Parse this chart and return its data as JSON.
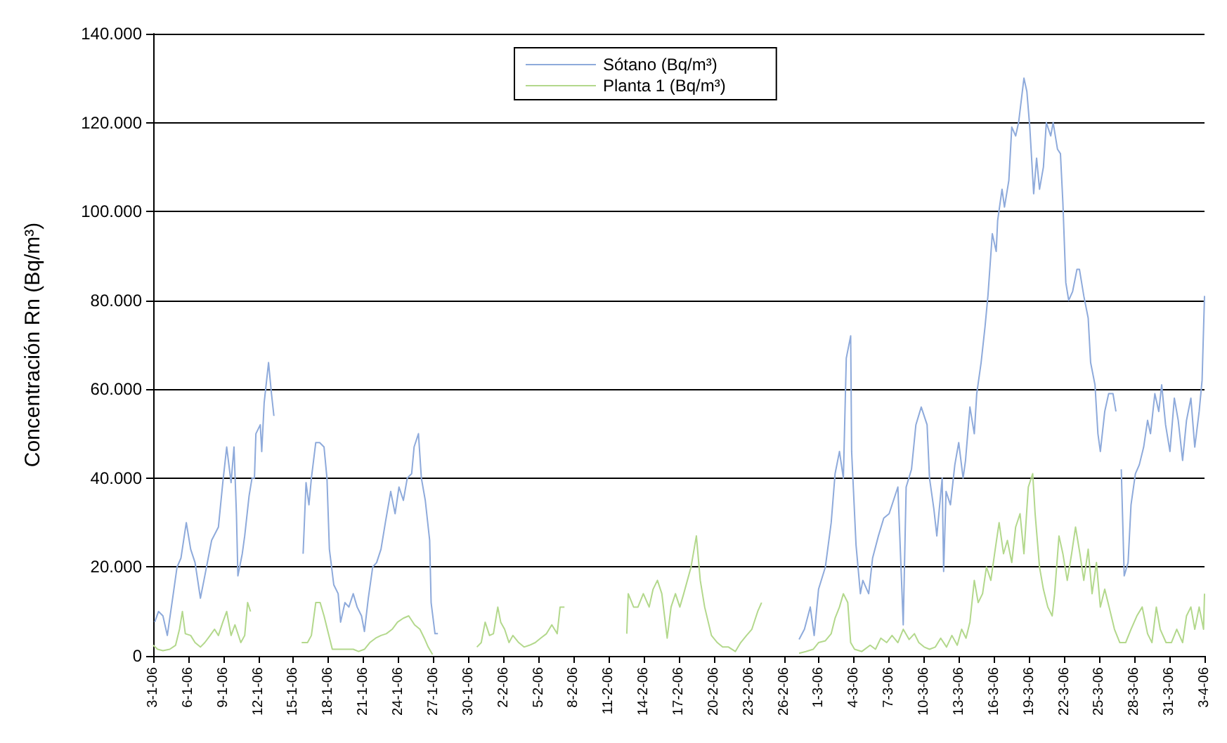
{
  "chart_data": {
    "type": "line",
    "ylabel": "Concentración Rn (Bq/m³)",
    "legend": "top",
    "grid": "y",
    "marker": "none",
    "line_style": "solid",
    "xlim": [
      "--01-03",
      "--04-03"
    ],
    "xticks": [
      {
        "value": "--01-03",
        "label": "3-1-06"
      },
      {
        "value": "--01-06",
        "label": "6-1-06"
      },
      {
        "value": "--01-09",
        "label": "9-1-06"
      },
      {
        "value": "--01-12",
        "label": "12-1-06"
      },
      {
        "value": "--01-15",
        "label": "15-1-06"
      },
      {
        "value": "--01-18",
        "label": "18-1-06"
      },
      {
        "value": "--01-21",
        "label": "21-1-06"
      },
      {
        "value": "--01-24",
        "label": "24-1-06"
      },
      {
        "value": "--01-27",
        "label": "27-1-06"
      },
      {
        "value": "--01-30",
        "label": "30-1-06"
      },
      {
        "value": "--02-02",
        "label": "2-2-06"
      },
      {
        "value": "--02-05",
        "label": "5-2-06"
      },
      {
        "value": "--02-08",
        "label": "8-2-06"
      },
      {
        "value": "--02-11",
        "label": "11-2-06"
      },
      {
        "value": "--02-14",
        "label": "14-2-06"
      },
      {
        "value": "--02-17",
        "label": "17-2-06"
      },
      {
        "value": "--02-20",
        "label": "20-2-06"
      },
      {
        "value": "--02-23",
        "label": "23-2-06"
      },
      {
        "value": "--02-26",
        "label": "26-2-06"
      },
      {
        "value": "--03-01",
        "label": "1-3-06"
      },
      {
        "value": "--03-04",
        "label": "4-3-06"
      },
      {
        "value": "--03-07",
        "label": "7-3-06"
      },
      {
        "value": "--03-10",
        "label": "10-3-06"
      },
      {
        "value": "--03-13",
        "label": "13-3-06"
      },
      {
        "value": "--03-16",
        "label": "16-3-06"
      },
      {
        "value": "--03-19",
        "label": "19-3-06"
      },
      {
        "value": "--03-22",
        "label": "22-3-06"
      },
      {
        "value": "--03-25",
        "label": "25-3-06"
      },
      {
        "value": "--03-28",
        "label": "28-3-06"
      },
      {
        "value": "--03-31",
        "label": "31-3-06"
      },
      {
        "value": "--04-03",
        "label": "3-4-06"
      }
    ],
    "ylim": [
      0,
      140000
    ],
    "yticks": [
      {
        "value": 0,
        "label": "0"
      },
      {
        "value": 20000,
        "label": "20.000"
      },
      {
        "value": 40000,
        "label": "40.000"
      },
      {
        "value": 60000,
        "label": "60.000"
      },
      {
        "value": 80000,
        "label": "80.000"
      },
      {
        "value": 100000,
        "label": "100.000"
      },
      {
        "value": 120000,
        "label": "120.000"
      },
      {
        "value": 140000,
        "label": "140.000"
      }
    ],
    "series": [
      {
        "name": "Sótano (Bq/m³)",
        "color": "#8eaadb",
        "x": [
          "--01-03T03:00",
          "--01-03T11:00",
          "--01-03T20:00",
          "--01-04T05:00",
          "--01-04T16:00",
          "--01-05T01:00",
          "--01-05T09:00",
          "--01-05T20:00",
          "--01-06T05:00",
          "--01-06T14:00",
          "--01-07T01:00",
          "--01-07T10:00",
          "--01-08T00:00",
          "--01-08T14:00",
          "--01-08T23:00",
          "--01-09T07:00",
          "--01-09T16:00",
          "--01-09T22:00",
          "--01-10T03:00",
          "--01-10T06:00",
          "--01-10T15:00",
          "--01-10T20:00",
          "--01-11T05:00",
          "--01-11T11:00",
          "--01-11T16:00",
          "--01-11T19:00",
          "--01-12T04:00",
          "--01-12T07:00",
          "--01-12T12:00",
          "--01-12T21:00",
          "--01-13T03:00",
          "--01-13T08:00",
          "--01-14T00:00",
          "--01-15T20:00",
          "--01-16T02:00",
          "--01-16T08:00",
          "--01-16T13:00",
          "--01-16T22:00",
          "--01-17T06:00",
          "--01-17T15:00",
          "--01-17T21:00",
          "--01-18T02:00",
          "--01-18T11:00",
          "--01-18T20:00",
          "--01-19T01:00",
          "--01-19T10:00",
          "--01-19T18:00",
          "--01-20T03:00",
          "--01-20T11:00",
          "--01-20T20:00",
          "--01-21T02:00",
          "--01-21T10:00",
          "--01-21T19:00",
          "--01-22T03:00",
          "--01-22T12:00",
          "--01-22T21:00",
          "--01-23T08:00",
          "--01-23T17:00",
          "--01-24T01:00",
          "--01-24T10:00",
          "--01-24T18:00",
          "--01-25T03:00",
          "--01-25T08:00",
          "--01-25T17:00",
          "--01-25T23:00",
          "--01-26T07:00",
          "--01-26T16:00",
          "--01-26T19:00",
          "--01-27T03:00",
          "--01-27T09:00",
          "--01-28T00:00",
          "--02-27T07:00",
          "--02-27T18:00",
          "--02-28T06:00",
          "--02-28T14:00",
          "--02-28T23:00",
          "--03-01T13:00",
          "--03-02T01:00",
          "--03-02T09:00",
          "--03-02T18:00",
          "--03-03T02:00",
          "--03-03T08:00",
          "--03-03T17:00",
          "--03-03T19:00",
          "--03-04T04:00",
          "--03-04T13:00",
          "--03-04T18:00",
          "--03-05T06:00",
          "--03-05T14:00",
          "--03-06T02:00",
          "--03-06T13:00",
          "--03-07T00:00",
          "--03-07T09:00",
          "--03-07T18:00",
          "--03-07T23:00",
          "--03-08T05:00",
          "--03-08T11:00",
          "--03-08T22:00",
          "--03-09T07:00",
          "--03-09T18:00",
          "--03-10T06:00",
          "--03-10T11:00",
          "--03-10T20:00",
          "--03-11T02:00",
          "--03-11T13:00",
          "--03-11T16:00",
          "--03-11T21:00",
          "--03-12T06:00",
          "--03-12T15:00",
          "--03-12T23:00",
          "--03-13T08:00",
          "--03-13T13:00",
          "--03-13T22:00",
          "--03-14T07:00",
          "--03-14T12:00",
          "--03-14T21:00",
          "--03-15T05:00",
          "--03-15T11:00",
          "--03-15T20:00",
          "--03-16T04:00",
          "--03-16T07:00",
          "--03-16T16:00",
          "--03-16T21:00",
          "--03-17T06:00",
          "--03-17T12:00",
          "--03-17T20:00",
          "--03-18T02:00",
          "--03-18T13:00",
          "--03-18T19:00",
          "--03-19T01:00",
          "--03-19T09:00",
          "--03-19T15:00",
          "--03-19T21:00",
          "--03-20T05:00",
          "--03-20T11:00",
          "--03-20T20:00",
          "--03-21T01:00",
          "--03-21T10:00",
          "--03-21T16:00",
          "--03-21T21:00",
          "--03-22T03:00",
          "--03-22T09:00",
          "--03-22T17:00",
          "--03-23T02:00",
          "--03-23T07:00",
          "--03-23T16:00",
          "--03-24T01:00",
          "--03-24T06:00",
          "--03-24T15:00",
          "--03-24T21:00",
          "--03-25T02:00",
          "--03-25T11:00",
          "--03-25T19:00",
          "--03-26T04:00",
          "--03-26T10:00",
          "--03-26T16:00",
          "--03-26T21:00",
          "--03-27T03:00",
          "--03-27T11:00",
          "--03-27T17:00",
          "--03-28T02:00",
          "--03-28T10:00",
          "--03-28T19:00",
          "--03-29T03:00",
          "--03-29T09:00",
          "--03-29T18:00",
          "--03-30T02:00",
          "--03-30T08:00",
          "--03-30T16:00",
          "--03-31T01:00",
          "--03-31T10:00",
          "--03-31T18:00",
          "--04-01T03:00",
          "--04-01T11:00",
          "--04-01T20:00",
          "--04-02T04:00",
          "--04-02T13:00",
          "--04-02T19:00",
          "--04-03T00:00"
        ],
        "values": [
          7600,
          10000,
          9000,
          4600,
          13000,
          20000,
          22000,
          30000,
          24000,
          21000,
          13000,
          18000,
          26000,
          29000,
          39000,
          47000,
          39000,
          47000,
          32000,
          18000,
          23000,
          27000,
          36000,
          40000,
          40000,
          50000,
          52000,
          46000,
          57000,
          66000,
          59000,
          54000,
          null,
          23000,
          39000,
          34000,
          40000,
          48000,
          48000,
          47000,
          40000,
          24000,
          16000,
          14000,
          7600,
          12000,
          11000,
          14000,
          11000,
          9000,
          5500,
          13000,
          20000,
          21000,
          24000,
          30000,
          37000,
          32000,
          38000,
          35000,
          40000,
          41000,
          47000,
          50000,
          40000,
          35000,
          26000,
          12000,
          5000,
          5000,
          null,
          3700,
          6000,
          11000,
          4600,
          15000,
          20000,
          30000,
          41000,
          46000,
          40000,
          67000,
          72000,
          46000,
          25000,
          14000,
          17000,
          14000,
          22000,
          27000,
          31000,
          32000,
          35000,
          38000,
          24000,
          7000,
          38000,
          42000,
          52000,
          56000,
          52000,
          40000,
          33000,
          27000,
          40000,
          19000,
          37000,
          34000,
          43000,
          48000,
          40000,
          44000,
          56000,
          50000,
          59000,
          66000,
          74000,
          81000,
          95000,
          91000,
          98000,
          105000,
          101000,
          107000,
          119000,
          117000,
          120000,
          130000,
          127000,
          119000,
          104000,
          112000,
          105000,
          110000,
          120000,
          117000,
          120000,
          114000,
          113000,
          102000,
          84000,
          80000,
          82000,
          87000,
          87000,
          81000,
          76000,
          66000,
          61000,
          50000,
          46000,
          55000,
          59000,
          59000,
          55000,
          null,
          42000,
          18000,
          21000,
          34000,
          41000,
          43000,
          47000,
          53000,
          50000,
          59000,
          55000,
          61000,
          52000,
          46000,
          58000,
          53000,
          44000,
          53000,
          58000,
          47000,
          55000,
          62000,
          81000
        ]
      },
      {
        "name": "Planta 1 (Bq/m³)",
        "color": "#b3d88c",
        "x": [
          "--01-03T00:00",
          "--01-03T09:00",
          "--01-03T20:00",
          "--01-04T10:00",
          "--01-04T22:00",
          "--01-05T06:00",
          "--01-05T12:00",
          "--01-05T18:00",
          "--01-06T05:00",
          "--01-06T14:00",
          "--01-07T01:00",
          "--01-07T10:00",
          "--01-07T21:00",
          "--01-08T06:00",
          "--01-08T14:00",
          "--01-08T23:00",
          "--01-09T07:00",
          "--01-09T16:00",
          "--01-10T00:00",
          "--01-10T12:00",
          "--01-10T20:00",
          "--01-11T02:00",
          "--01-11T08:00",
          "--01-12T00:00",
          "--01-15T17:00",
          "--01-16T05:00",
          "--01-16T13:00",
          "--01-16T22:00",
          "--01-17T07:00",
          "--01-17T15:00",
          "--01-18T00:00",
          "--01-18T08:00",
          "--01-19T01:00",
          "--01-19T16:00",
          "--01-20T03:00",
          "--01-20T14:00",
          "--01-21T02:00",
          "--01-21T13:00",
          "--01-22T01:00",
          "--01-22T12:00",
          "--01-22T23:00",
          "--01-23T11:00",
          "--01-23T22:00",
          "--01-24T10:00",
          "--01-24T21:00",
          "--01-25T09:00",
          "--01-25T20:00",
          "--01-26T05:00",
          "--01-26T13:00",
          "--01-26T22:00",
          "--01-28T00:00",
          "--01-30T17:00",
          "--01-31T02:00",
          "--01-31T10:00",
          "--01-31T19:00",
          "--02-01T03:00",
          "--02-01T12:00",
          "--02-01T18:00",
          "--02-02T02:00",
          "--02-02T11:00",
          "--02-02T19:00",
          "--02-03T07:00",
          "--02-03T18:00",
          "--02-04T05:00",
          "--02-04T17:00",
          "--02-05T04:00",
          "--02-05T16:00",
          "--02-06T03:00",
          "--02-06T14:00",
          "--02-06T20:00",
          "--02-07T05:00",
          "--02-09T00:00",
          "--02-12T13:00",
          "--02-12T16:00",
          "--02-13T03:00",
          "--02-13T12:00",
          "--02-13T23:00",
          "--02-14T11:00",
          "--02-14T19:00",
          "--02-15T04:00",
          "--02-15T13:00",
          "--02-16T00:00",
          "--02-16T08:00",
          "--02-16T17:00",
          "--02-17T02:00",
          "--02-17T10:00",
          "--02-18T01:00",
          "--02-18T12:00",
          "--02-18T20:00",
          "--02-19T05:00",
          "--02-19T19:00",
          "--02-20T07:00",
          "--02-20T18:00",
          "--02-21T06:00",
          "--02-21T20:00",
          "--02-22T07:00",
          "--02-22T19:00",
          "--02-23T06:00",
          "--02-23T18:00",
          "--02-24T02:00",
          "--02-25T12:00",
          "--02-27T07:00",
          "--02-27T21:00",
          "--02-28T12:00",
          "--02-28T23:00",
          "--03-01T13:00",
          "--03-02T01:00",
          "--03-02T09:00",
          "--03-02T18:00",
          "--03-03T02:00",
          "--03-03T11:00",
          "--03-03T17:00",
          "--03-04T01:00",
          "--03-04T16:00",
          "--03-05T09:00",
          "--03-05T20:00",
          "--03-06T07:00",
          "--03-06T19:00",
          "--03-07T06:00",
          "--03-07T18:00",
          "--03-08T05:00",
          "--03-08T17:00",
          "--03-09T04:00",
          "--03-09T13:00",
          "--03-10T00:00",
          "--03-10T11:00",
          "--03-10T23:00",
          "--03-11T10:00",
          "--03-11T22:00",
          "--03-12T09:00",
          "--03-12T20:00",
          "--03-13T05:00",
          "--03-13T14:00",
          "--03-13T22:00",
          "--03-14T07:00",
          "--03-14T15:00",
          "--03-15T00:00",
          "--03-15T08:00",
          "--03-15T17:00",
          "--03-16T02:00",
          "--03-16T10:00",
          "--03-16T19:00",
          "--03-17T03:00",
          "--03-17T12:00",
          "--03-17T20:00",
          "--03-18T05:00",
          "--03-18T13:00",
          "--03-18T22:00",
          "--03-19T07:00",
          "--03-19T12:00",
          "--03-19T21:00",
          "--03-20T05:00",
          "--03-20T14:00",
          "--03-20T23:00",
          "--03-21T04:00",
          "--03-21T13:00",
          "--03-21T21:00",
          "--03-22T06:00",
          "--03-22T15:00",
          "--03-22T23:00",
          "--03-23T08:00",
          "--03-23T16:00",
          "--03-24T01:00",
          "--03-24T09:00",
          "--03-24T18:00",
          "--03-25T02:00",
          "--03-25T11:00",
          "--03-25T20:00",
          "--03-26T07:00",
          "--03-26T18:00",
          "--03-27T06:00",
          "--03-27T17:00",
          "--03-28T05:00",
          "--03-28T16:00",
          "--03-29T03:00",
          "--03-29T12:00",
          "--03-29T21:00",
          "--03-30T05:00",
          "--03-30T17:00",
          "--03-31T04:00",
          "--03-31T15:00",
          "--04-01T03:00",
          "--04-01T11:00",
          "--04-01T20:00",
          "--04-02T04:00",
          "--04-02T13:00",
          "--04-02T22:00",
          "--04-03T00:00"
        ],
        "values": [
          2400,
          1500,
          1200,
          1500,
          2400,
          6000,
          10000,
          5000,
          4600,
          3000,
          2000,
          3000,
          4600,
          6000,
          4600,
          7600,
          10000,
          4600,
          7000,
          3000,
          4600,
          12000,
          10000,
          null,
          3000,
          3000,
          4600,
          12000,
          12000,
          9000,
          5000,
          1500,
          1500,
          1500,
          1500,
          1000,
          1500,
          3000,
          4000,
          4600,
          5000,
          6000,
          7600,
          8500,
          9000,
          7000,
          6000,
          4000,
          2000,
          300,
          null,
          2000,
          3000,
          7600,
          4600,
          5000,
          11000,
          7600,
          6000,
          3000,
          4600,
          3000,
          2000,
          2400,
          3000,
          4000,
          5000,
          7000,
          5000,
          11000,
          11000,
          null,
          5000,
          14000,
          11000,
          11000,
          14000,
          11000,
          15000,
          17000,
          14000,
          4000,
          11000,
          14000,
          11000,
          14000,
          20000,
          27000,
          17000,
          11000,
          4600,
          3000,
          2000,
          2000,
          1000,
          3000,
          4600,
          6000,
          10000,
          12000,
          null,
          600,
          1000,
          1500,
          3000,
          3400,
          5000,
          8500,
          11000,
          14000,
          12000,
          3000,
          1500,
          1000,
          2400,
          1500,
          4000,
          3000,
          4600,
          3000,
          6000,
          3700,
          5000,
          3000,
          2000,
          1500,
          2000,
          4000,
          2000,
          4600,
          2400,
          6000,
          4000,
          7600,
          17000,
          12000,
          14000,
          20000,
          17000,
          24000,
          30000,
          23000,
          26000,
          21000,
          29000,
          32000,
          23000,
          38000,
          41000,
          32000,
          20000,
          15000,
          11000,
          9000,
          14000,
          27000,
          23000,
          17000,
          23000,
          29000,
          23000,
          17000,
          24000,
          14000,
          21000,
          11000,
          15000,
          11000,
          6000,
          3000,
          3000,
          6000,
          9000,
          11000,
          5000,
          3000,
          11000,
          6000,
          3000,
          3000,
          6000,
          3000,
          9000,
          11000,
          6000,
          11000,
          6000,
          14000
        ]
      }
    ]
  }
}
